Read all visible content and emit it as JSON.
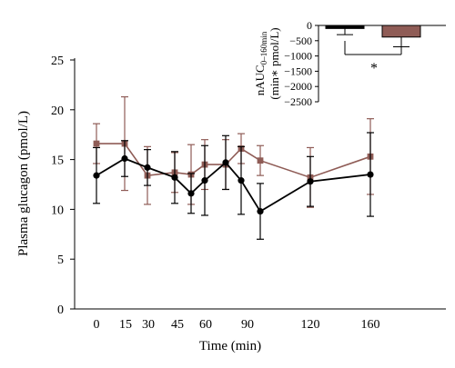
{
  "chart_data": [
    {
      "type": "line",
      "xlabel": "Time (min)",
      "ylabel": "Plasma glucagon (pmol/L)",
      "ylim": [
        0,
        25
      ],
      "yticks": [
        "0",
        "5",
        "10",
        "15",
        "20",
        "25"
      ],
      "xticks": [
        0,
        15,
        30,
        45,
        60,
        90,
        120,
        160
      ],
      "xtick_labels": [
        "0",
        "15",
        "30",
        "45",
        "60",
        "90",
        "120",
        "160"
      ],
      "grid": false,
      "legend": "none",
      "series": [
        {
          "color": "#000000",
          "marker": "circle",
          "x": [
            0,
            15,
            30,
            45,
            53,
            60,
            75,
            85,
            95,
            120,
            160
          ],
          "y": [
            13.4,
            15.1,
            14.2,
            13.2,
            11.6,
            12.9,
            14.7,
            12.9,
            9.8,
            12.8,
            13.5
          ],
          "err": [
            2.8,
            1.8,
            1.8,
            2.6,
            2.0,
            3.5,
            2.7,
            3.4,
            2.8,
            2.5,
            4.2
          ]
        },
        {
          "color": "#8f5c56",
          "marker": "square",
          "x": [
            0,
            15,
            30,
            45,
            53,
            60,
            75,
            85,
            95,
            120,
            160
          ],
          "y": [
            16.6,
            16.6,
            13.4,
            13.7,
            13.5,
            14.5,
            14.5,
            16.1,
            14.9,
            13.2,
            15.3
          ],
          "err": [
            2.0,
            4.7,
            2.9,
            2.0,
            3.0,
            2.5,
            2.5,
            1.5,
            1.5,
            3.0,
            3.8
          ]
        }
      ]
    },
    {
      "type": "bar",
      "ylabel": "nAUC0–160min",
      "ylabel_sub": "0–160min",
      "ylabel_base": "nAUC",
      "ylabel_unit": "(min∗ pmol/L)",
      "ylim": [
        -2500,
        0
      ],
      "yticks": [
        "0",
        "−500",
        "−1000",
        "−1500",
        "−2000",
        "−2500"
      ],
      "bars": [
        {
          "value": -100,
          "err": 200,
          "color": "#000000"
        },
        {
          "value": -380,
          "err": 320,
          "color": "#8f5c56"
        }
      ],
      "annotation": "*"
    }
  ]
}
